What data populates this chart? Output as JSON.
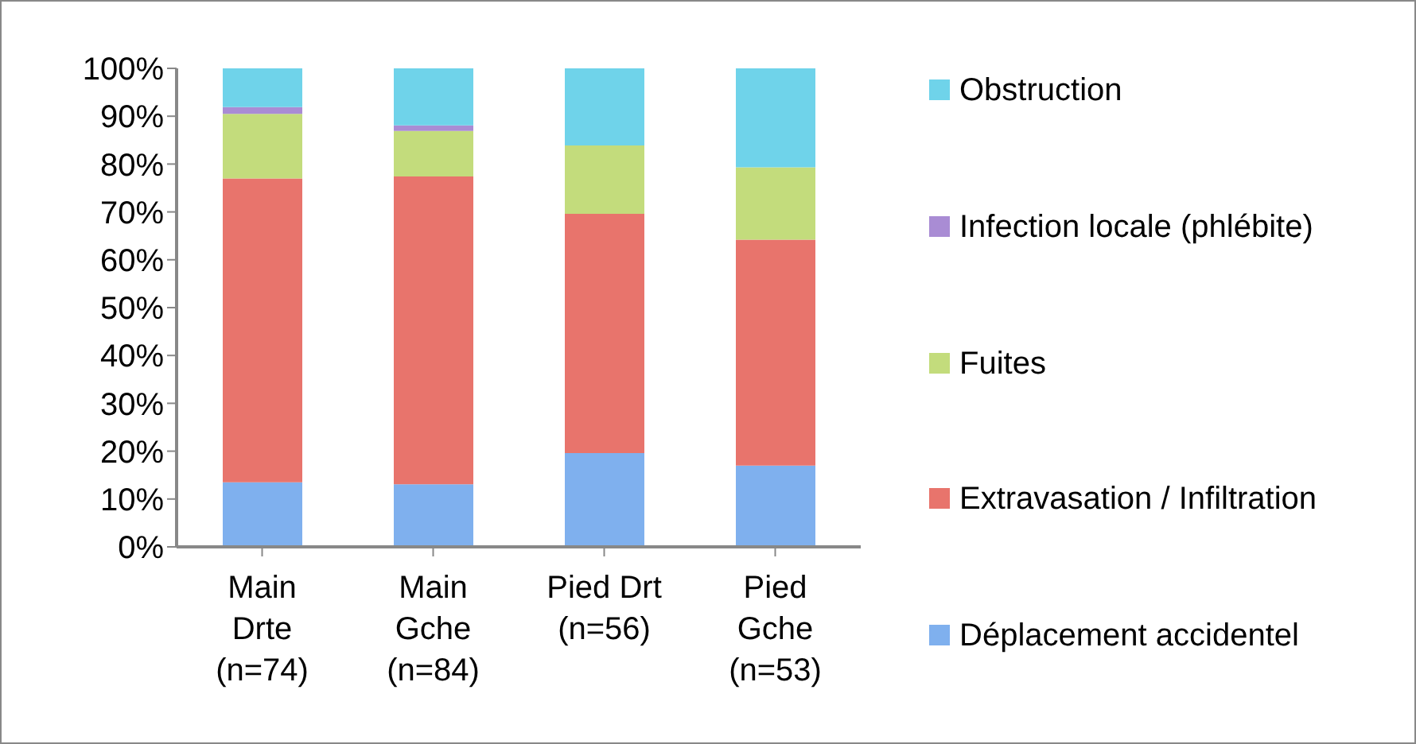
{
  "chart_data": {
    "type": "bar",
    "stacked": true,
    "categories": [
      "Main Drte (n=74)",
      "Main Gche (n=84)",
      "Pied Drt (n=56)",
      "Pied Gche (n=53)"
    ],
    "series": [
      {
        "name": "Déplacement accidentel",
        "color": "#7fb0ee",
        "values": [
          13.5,
          13.1,
          19.6,
          17.0
        ]
      },
      {
        "name": "Extravasation / Infiltration",
        "color": "#e8746c",
        "values": [
          63.5,
          64.3,
          50.0,
          47.2
        ]
      },
      {
        "name": "Fuites",
        "color": "#c3dc7c",
        "values": [
          13.5,
          9.5,
          14.3,
          15.1
        ]
      },
      {
        "name": "Infection locale (phlébite)",
        "color": "#a98cd4",
        "values": [
          1.4,
          1.2,
          0,
          0
        ]
      },
      {
        "name": "Obstruction",
        "color": "#6fd3ea",
        "values": [
          8.1,
          11.9,
          16.1,
          20.8
        ]
      }
    ],
    "ylim": [
      0,
      100
    ],
    "yticks": [
      {
        "value": 0,
        "label": "0%"
      },
      {
        "value": 10,
        "label": "10%"
      },
      {
        "value": 20,
        "label": "20%"
      },
      {
        "value": 30,
        "label": "30%"
      },
      {
        "value": 40,
        "label": "40%"
      },
      {
        "value": 50,
        "label": "50%"
      },
      {
        "value": 60,
        "label": "60%"
      },
      {
        "value": 70,
        "label": "70%"
      },
      {
        "value": 80,
        "label": "80%"
      },
      {
        "value": 90,
        "label": "90%"
      },
      {
        "value": 100,
        "label": "100%"
      }
    ],
    "grid": false,
    "legend": "right"
  }
}
